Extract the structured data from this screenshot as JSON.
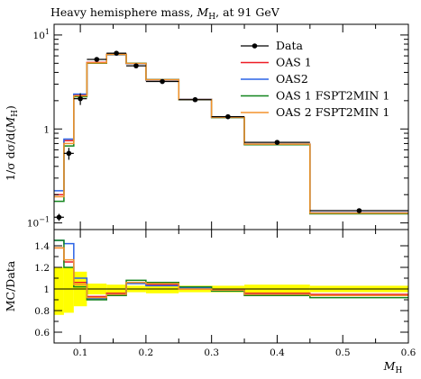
{
  "chart_data": [
    {
      "type": "line",
      "title": "Heavy hemisphere mass, M_H, at 91 GeV",
      "title_display": "Heavy hemisphere mass, M H, at 91 GeV",
      "title_parts": {
        "prefix": "Heavy hemisphere mass, ",
        "symbol": "M",
        "sub": "H",
        "suffix": ", at 91 GeV"
      },
      "ylabel": "1/σ dσ/d(M_H)",
      "ylabel_parts": {
        "prefix": "1/σ dσ/d(",
        "symbol": "M",
        "sub": "H",
        "suffix": ")"
      },
      "yscale": "log",
      "ylim": [
        0.085,
        13
      ],
      "xlim": [
        0.06,
        0.6
      ],
      "y_ticks": [
        {
          "value": 0.1,
          "base": "10",
          "exp": "−1"
        },
        {
          "value": 1,
          "label": "1"
        },
        {
          "value": 10,
          "base": "10",
          "exp": "1"
        }
      ],
      "legend_position": "top-right",
      "x_edges": [
        0.06,
        0.075,
        0.09,
        0.11,
        0.14,
        0.17,
        0.2,
        0.25,
        0.3,
        0.35,
        0.45,
        0.6
      ],
      "data": {
        "name": "Data",
        "color": "#000000",
        "x": [
          0.0675,
          0.0825,
          0.1,
          0.125,
          0.155,
          0.185,
          0.225,
          0.275,
          0.325,
          0.4,
          0.525
        ],
        "y": [
          0.115,
          0.55,
          2.1,
          5.5,
          6.4,
          4.7,
          3.2,
          2.05,
          1.35,
          0.72,
          0.135
        ],
        "yerr": [
          0.01,
          0.08,
          0.3,
          0.25,
          0.2,
          0.15,
          0.1,
          0.06,
          0.04,
          0.02,
          0.006
        ]
      },
      "series": [
        {
          "name": "OAS 1",
          "color": "#ee1c24",
          "values": [
            0.2,
            0.75,
            2.3,
            5.1,
            6.25,
            5.0,
            3.35,
            2.05,
            1.33,
            0.69,
            0.128
          ]
        },
        {
          "name": "OAS2",
          "color": "#2a63e6",
          "values": [
            0.22,
            0.78,
            2.35,
            5.0,
            6.15,
            4.95,
            3.3,
            2.07,
            1.33,
            0.69,
            0.128
          ]
        },
        {
          "name": "OAS 1 FSPT2MIN 1",
          "color": "#11841b",
          "values": [
            0.17,
            0.66,
            2.2,
            5.0,
            6.2,
            5.0,
            3.35,
            2.05,
            1.32,
            0.68,
            0.125
          ]
        },
        {
          "name": "OAS 2 FSPT2MIN 1",
          "color": "#f3922b",
          "values": [
            0.19,
            0.7,
            2.25,
            5.05,
            6.2,
            4.98,
            3.33,
            2.06,
            1.33,
            0.69,
            0.127
          ]
        }
      ]
    },
    {
      "type": "line",
      "ylabel": "MC/Data",
      "xlabel": "M_H",
      "xlabel_parts": {
        "symbol": "M",
        "sub": "H"
      },
      "ylim": [
        0.5,
        1.55
      ],
      "xlim": [
        0.06,
        0.6
      ],
      "y_ticks": [
        0.6,
        0.8,
        1,
        1.2,
        1.4
      ],
      "x_ticks": [
        0.1,
        0.2,
        0.3,
        0.4,
        0.5,
        0.6
      ],
      "x_tick_labels": [
        "0.1",
        "0.2",
        "0.3",
        "0.4",
        "0.5",
        "0.6"
      ],
      "x_edges": [
        0.06,
        0.075,
        0.09,
        0.11,
        0.14,
        0.17,
        0.2,
        0.25,
        0.3,
        0.35,
        0.45,
        0.6
      ],
      "data_uncertainty_band": {
        "color": "#ffff00",
        "low": [
          0.76,
          0.78,
          0.84,
          0.95,
          0.96,
          0.97,
          0.96,
          0.97,
          0.97,
          0.96,
          0.97
        ],
        "high": [
          1.2,
          1.2,
          1.16,
          1.05,
          1.04,
          1.03,
          1.04,
          1.03,
          1.03,
          1.04,
          1.03
        ]
      },
      "series": [
        {
          "name": "OAS 1",
          "color": "#ee1c24",
          "values": [
            1.38,
            1.25,
            1.06,
            0.93,
            0.96,
            1.06,
            1.04,
            1.0,
            0.99,
            0.96,
            0.95
          ]
        },
        {
          "name": "OAS2",
          "color": "#2a63e6",
          "values": [
            1.45,
            1.42,
            1.1,
            0.91,
            0.95,
            1.05,
            1.03,
            1.01,
            0.99,
            0.95,
            0.94
          ]
        },
        {
          "name": "OAS 1 FSPT2MIN 1",
          "color": "#11841b",
          "values": [
            1.45,
            1.2,
            1.02,
            0.9,
            0.94,
            1.08,
            1.06,
            1.02,
            0.98,
            0.94,
            0.92
          ]
        },
        {
          "name": "OAS 2 FSPT2MIN 1",
          "color": "#f3922b",
          "values": [
            1.38,
            1.27,
            1.04,
            0.92,
            0.95,
            1.06,
            1.05,
            1.0,
            0.99,
            0.95,
            0.94
          ]
        }
      ],
      "reference_line": {
        "value": 1,
        "color": "#000000"
      }
    }
  ]
}
